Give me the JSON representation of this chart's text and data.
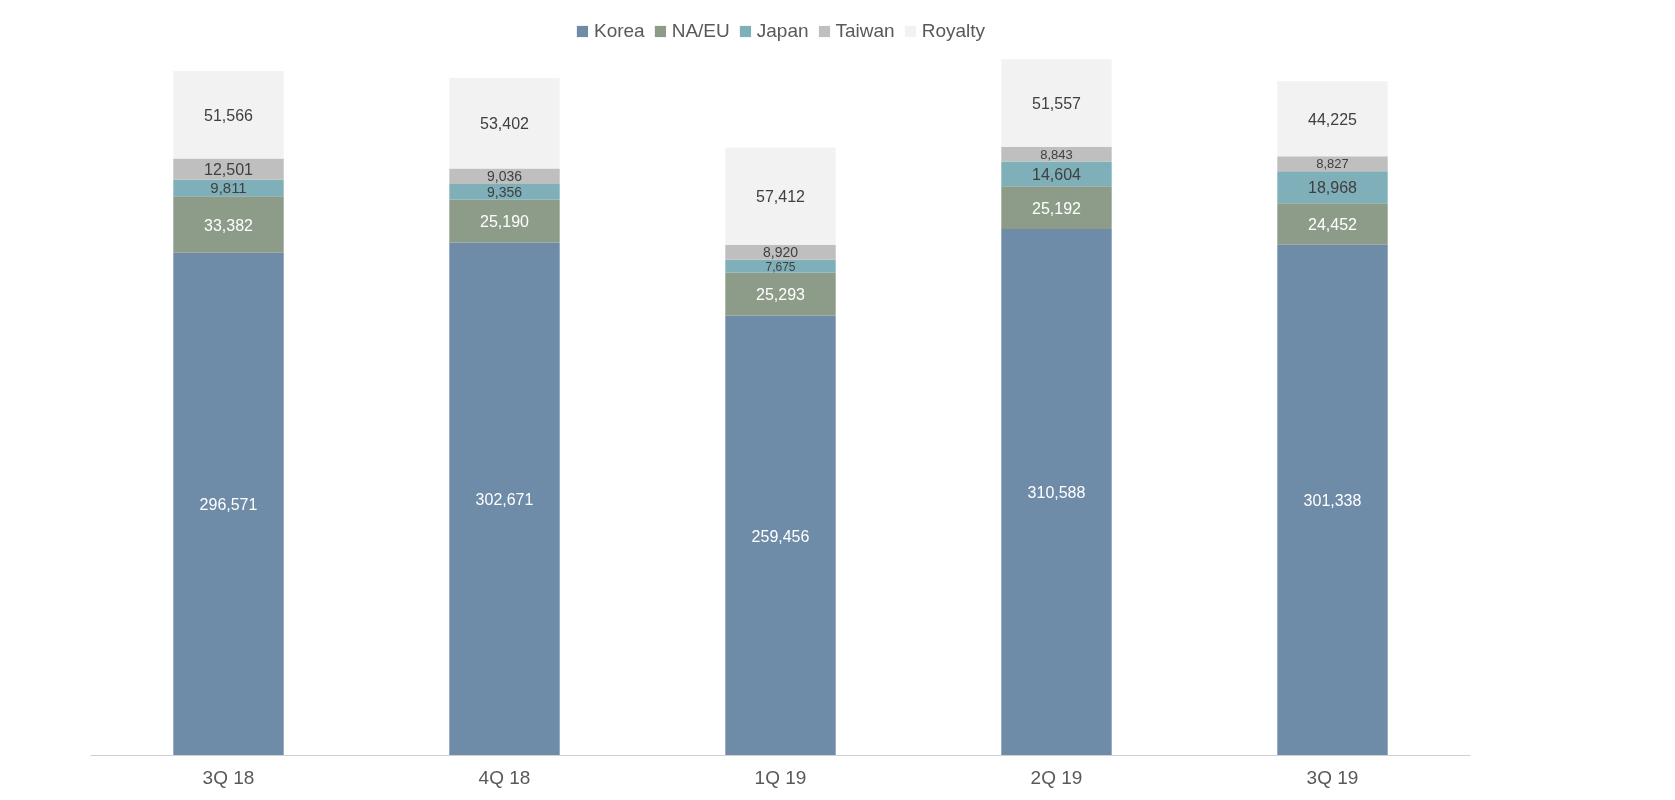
{
  "chart_data": {
    "type": "bar",
    "stacked": true,
    "legend": "top",
    "grid": false,
    "categories": [
      "3Q 18",
      "4Q 18",
      "1Q 19",
      "2Q 19",
      "3Q 19"
    ],
    "series": [
      {
        "name": "Korea",
        "color": "#6e8ba8",
        "values": [
          296571,
          302671,
          259456,
          310588,
          301338
        ],
        "value_labels": [
          "296,571",
          "302,671",
          "259,456",
          "310,588",
          "301,338"
        ]
      },
      {
        "name": "NA/EU",
        "color": "#8c9c88",
        "values": [
          33382,
          25190,
          25293,
          25192,
          24452
        ],
        "value_labels": [
          "33,382",
          "25,190",
          "25,293",
          "25,192",
          "24,452"
        ]
      },
      {
        "name": "Japan",
        "color": "#7fafb8",
        "values": [
          9811,
          9356,
          7675,
          14604,
          18968
        ],
        "value_labels": [
          "9,811",
          "9,356",
          "7,675",
          "14,604",
          "18,968"
        ]
      },
      {
        "name": "Taiwan",
        "color": "#bfbfbf",
        "values": [
          12501,
          9036,
          8920,
          8843,
          8827
        ],
        "value_labels": [
          "12,501",
          "9,036",
          "8,920",
          "8,843",
          "8,827"
        ]
      },
      {
        "name": "Royalty",
        "color": "#f2f2f2",
        "values": [
          51566,
          53402,
          57412,
          51557,
          44225
        ],
        "value_labels": [
          "51,566",
          "53,402",
          "57,412",
          "51,557",
          "44,225"
        ]
      }
    ]
  }
}
